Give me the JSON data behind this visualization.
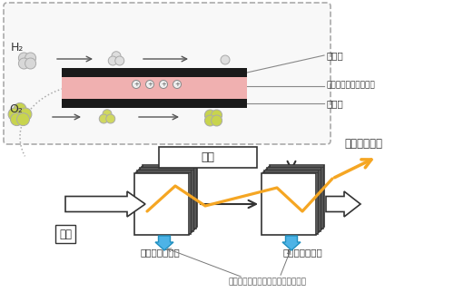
{
  "bg_color": "#ffffff",
  "membrane_color": "#f0b0b0",
  "black_layer": "#1a1a1a",
  "h2_color": "#d8d8d8",
  "o2_color": "#c8d44e",
  "blue_arrow": "#4db3e6",
  "orange_line": "#f5a623",
  "label_fuel_pole": "燃料極",
  "label_electrolyte": "プロトン導電性電解質",
  "label_air_pole": "空気極",
  "label_h2": "H₂",
  "label_o2": "O₂",
  "label_air_box": "空気",
  "label_fuel_input": "燃料",
  "label_upstream": "上流側スタック",
  "label_downstream": "下流側スタック",
  "label_steam": "反応による水蒸気発生（空気極側）",
  "label_high_efficiency": "超高効率発電"
}
